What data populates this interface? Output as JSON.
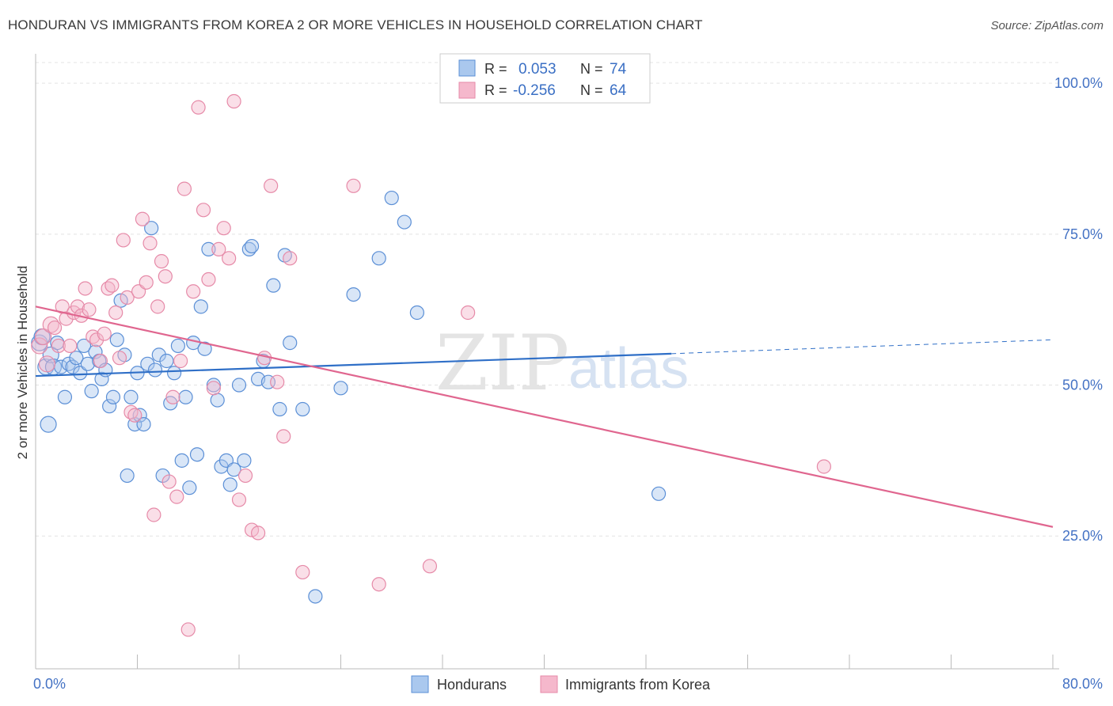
{
  "title": "HONDURAN VS IMMIGRANTS FROM KOREA 2 OR MORE VEHICLES IN HOUSEHOLD CORRELATION CHART",
  "source": "Source: ZipAtlas.com",
  "watermark": {
    "zip": "ZIP",
    "atlas": "atlas"
  },
  "colors": {
    "blue_fill": "#aac8ee",
    "blue_stroke": "#5b8fd6",
    "blue_line": "#2f6fc7",
    "pink_fill": "#f5b8cc",
    "pink_stroke": "#e68aa8",
    "pink_line": "#e0668f",
    "axis_label": "#4472c4",
    "grid": "#e3e3e3"
  },
  "legend_top": {
    "rows": [
      {
        "r_label": "R =",
        "r_value": "0.053",
        "n_label": "N =",
        "n_value": "74"
      },
      {
        "r_label": "R =",
        "r_value": "-0.256",
        "n_label": "N =",
        "n_value": "64"
      }
    ]
  },
  "legend_bottom": [
    "Hondurans",
    "Immigrants from Korea"
  ],
  "chart_data": {
    "type": "scatter",
    "ylabel": "2 or more Vehicles in Household",
    "xlim": [
      0,
      80
    ],
    "ylim": [
      3,
      105
    ],
    "x_tick_labels": [
      {
        "x": 0,
        "label": "0.0%"
      },
      {
        "x": 80,
        "label": "80.0%"
      }
    ],
    "y_tick_labels": [
      {
        "y": 100,
        "label": "100.0%"
      },
      {
        "y": 75,
        "label": "75.0%"
      },
      {
        "y": 50,
        "label": "50.0%"
      },
      {
        "y": 25,
        "label": "25.0%"
      }
    ],
    "x_minor_ticks": [
      8,
      16,
      24,
      32,
      40,
      48,
      56,
      64,
      72,
      80
    ],
    "grid": true,
    "series": [
      {
        "name": "Hondurans",
        "color": "#aac8ee",
        "trend": {
          "x0": 0,
          "y0": 51.5,
          "x1": 50,
          "y1": 55.2,
          "dash_to_x": 80,
          "dash_to_y": 57.5
        },
        "points": [
          [
            0.3,
            57
          ],
          [
            0.5,
            58
          ],
          [
            0.8,
            53
          ],
          [
            1.0,
            43.5
          ],
          [
            1.2,
            55
          ],
          [
            1.4,
            53
          ],
          [
            1.7,
            57
          ],
          [
            2.0,
            53
          ],
          [
            2.3,
            48
          ],
          [
            2.6,
            53.5
          ],
          [
            2.9,
            53
          ],
          [
            3.2,
            54.5
          ],
          [
            3.5,
            52
          ],
          [
            3.8,
            56.5
          ],
          [
            4.1,
            53.5
          ],
          [
            4.4,
            49
          ],
          [
            4.7,
            55.5
          ],
          [
            5.0,
            54
          ],
          [
            5.2,
            51
          ],
          [
            5.5,
            52.5
          ],
          [
            5.8,
            46.5
          ],
          [
            6.1,
            48
          ],
          [
            6.4,
            57.5
          ],
          [
            6.7,
            64
          ],
          [
            7.0,
            55
          ],
          [
            7.2,
            35
          ],
          [
            7.5,
            48
          ],
          [
            7.8,
            43.5
          ],
          [
            8.0,
            52
          ],
          [
            8.2,
            45
          ],
          [
            8.5,
            43.5
          ],
          [
            8.8,
            53.5
          ],
          [
            9.1,
            76
          ],
          [
            9.4,
            52.5
          ],
          [
            9.7,
            55
          ],
          [
            10.0,
            35
          ],
          [
            10.3,
            54
          ],
          [
            10.6,
            47
          ],
          [
            10.9,
            52
          ],
          [
            11.2,
            56.5
          ],
          [
            11.5,
            37.5
          ],
          [
            11.8,
            48
          ],
          [
            12.1,
            33
          ],
          [
            12.4,
            57
          ],
          [
            12.7,
            38.5
          ],
          [
            13.0,
            63
          ],
          [
            13.3,
            56
          ],
          [
            13.6,
            72.5
          ],
          [
            14.0,
            50
          ],
          [
            14.3,
            47.5
          ],
          [
            14.6,
            36.5
          ],
          [
            15.0,
            37.5
          ],
          [
            15.3,
            33.5
          ],
          [
            15.6,
            36
          ],
          [
            16.0,
            50
          ],
          [
            16.4,
            37.5
          ],
          [
            16.8,
            72.5
          ],
          [
            17.0,
            73
          ],
          [
            17.5,
            51
          ],
          [
            17.9,
            54
          ],
          [
            18.3,
            50.5
          ],
          [
            18.7,
            66.5
          ],
          [
            19.2,
            46
          ],
          [
            19.6,
            71.5
          ],
          [
            20.0,
            57
          ],
          [
            21.0,
            46
          ],
          [
            22.0,
            15
          ],
          [
            24.0,
            49.5
          ],
          [
            25.0,
            65
          ],
          [
            27.0,
            71
          ],
          [
            28.0,
            81
          ],
          [
            29.0,
            77
          ],
          [
            30.0,
            62
          ],
          [
            49.0,
            32
          ]
        ]
      },
      {
        "name": "Immigrants from Korea",
        "color": "#f5b8cc",
        "trend": {
          "x0": 0,
          "y0": 63,
          "x1": 80,
          "y1": 26.5
        },
        "points": [
          [
            0.3,
            56.5
          ],
          [
            0.6,
            58
          ],
          [
            0.9,
            53.5
          ],
          [
            1.2,
            60
          ],
          [
            1.5,
            59.5
          ],
          [
            1.8,
            56.5
          ],
          [
            2.1,
            63
          ],
          [
            2.4,
            61
          ],
          [
            2.7,
            56.5
          ],
          [
            3.0,
            62
          ],
          [
            3.3,
            63
          ],
          [
            3.6,
            61.5
          ],
          [
            3.9,
            66
          ],
          [
            4.2,
            62.5
          ],
          [
            4.5,
            58
          ],
          [
            4.8,
            57.5
          ],
          [
            5.1,
            54
          ],
          [
            5.4,
            58.5
          ],
          [
            5.7,
            66
          ],
          [
            6.0,
            66.5
          ],
          [
            6.3,
            62
          ],
          [
            6.6,
            54.5
          ],
          [
            6.9,
            74
          ],
          [
            7.2,
            64.5
          ],
          [
            7.5,
            45.5
          ],
          [
            7.8,
            45
          ],
          [
            8.1,
            65.5
          ],
          [
            8.4,
            77.5
          ],
          [
            8.7,
            67
          ],
          [
            9.0,
            73.5
          ],
          [
            9.3,
            28.5
          ],
          [
            9.6,
            63
          ],
          [
            9.9,
            70.5
          ],
          [
            10.2,
            68
          ],
          [
            10.5,
            34
          ],
          [
            10.8,
            48
          ],
          [
            11.1,
            31.5
          ],
          [
            11.4,
            54
          ],
          [
            11.7,
            82.5
          ],
          [
            12.0,
            9.5
          ],
          [
            12.4,
            65.5
          ],
          [
            12.8,
            96
          ],
          [
            13.2,
            79
          ],
          [
            13.6,
            67.5
          ],
          [
            14.0,
            49.5
          ],
          [
            14.4,
            72.5
          ],
          [
            14.8,
            76
          ],
          [
            15.2,
            71
          ],
          [
            15.6,
            97
          ],
          [
            16.0,
            31
          ],
          [
            16.5,
            35
          ],
          [
            17.0,
            26
          ],
          [
            17.5,
            25.5
          ],
          [
            18.0,
            54.5
          ],
          [
            18.5,
            83
          ],
          [
            19.0,
            50.5
          ],
          [
            19.5,
            41.5
          ],
          [
            20.0,
            71
          ],
          [
            21.0,
            19
          ],
          [
            25.0,
            83
          ],
          [
            27.0,
            17
          ],
          [
            31.0,
            20
          ],
          [
            34.0,
            62
          ],
          [
            62.0,
            36.5
          ]
        ]
      }
    ]
  }
}
